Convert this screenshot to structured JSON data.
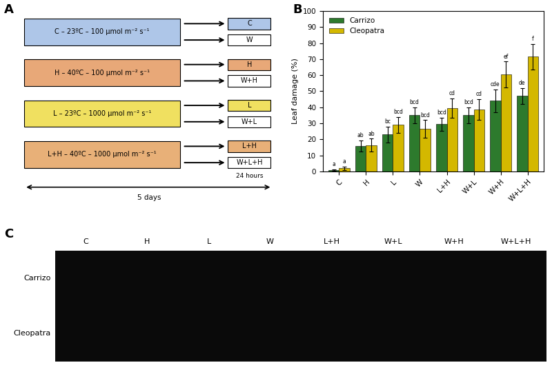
{
  "chart_data": [
    {
      "type": "diagram",
      "title": "A",
      "categories": [
        "C – 23ºC – 100 μmol m⁻² s⁻¹",
        "H – 40ºC – 100 μmol m⁻² s⁻¹",
        "L – 23ºC – 1000 μmol m⁻² s⁻¹",
        "L+H – 40ºC – 1000 μmol m⁻² s⁻¹"
      ],
      "colors": [
        "#aec6e8",
        "#e8a878",
        "#f0e060",
        "#e8b078"
      ],
      "outputs": [
        [
          "C",
          "W"
        ],
        [
          "H",
          "W+H"
        ],
        [
          "L",
          "W+L"
        ],
        [
          "L+H",
          "W+L+H"
        ]
      ],
      "annotations": [
        "5 days",
        "24 hours"
      ]
    },
    {
      "type": "bar",
      "title": "B",
      "ylabel": "Leaf damage (%)",
      "categories": [
        "C",
        "H",
        "L",
        "W",
        "L+H",
        "W+L",
        "W+H",
        "W+L+H"
      ],
      "series": [
        {
          "name": "Carrizo",
          "color": "#2d7a2d",
          "values": [
            1.0,
            16.0,
            23.0,
            35.0,
            29.5,
            35.0,
            44.0,
            47.0
          ],
          "errors": [
            0.5,
            3.5,
            5.0,
            5.0,
            4.0,
            5.0,
            7.0,
            5.0
          ],
          "annotations": [
            "a",
            "ab",
            "bc",
            "bcd",
            "bcd",
            "bcd",
            "cde",
            "de"
          ]
        },
        {
          "name": "Cleopatra",
          "color": "#d4b800",
          "values": [
            2.0,
            16.5,
            29.0,
            26.5,
            39.5,
            38.5,
            60.5,
            71.5
          ],
          "errors": [
            1.0,
            4.0,
            5.0,
            5.5,
            6.0,
            6.5,
            8.0,
            8.0
          ],
          "annotations": [
            "a",
            "ab",
            "bcd",
            "bcd",
            "cd",
            "cd",
            "ef",
            "f"
          ]
        }
      ],
      "ylim": [
        0,
        100
      ],
      "yticks": [
        0,
        10,
        20,
        30,
        40,
        50,
        60,
        70,
        80,
        90,
        100
      ],
      "legend": "upper left"
    },
    {
      "type": "image",
      "title": "C",
      "categories": [
        "C",
        "H",
        "L",
        "W",
        "L+H",
        "W+L",
        "W+H",
        "W+L+H"
      ],
      "rows": [
        "Carrizo",
        "Cleopatra"
      ],
      "color": "#0a0a0a"
    }
  ]
}
